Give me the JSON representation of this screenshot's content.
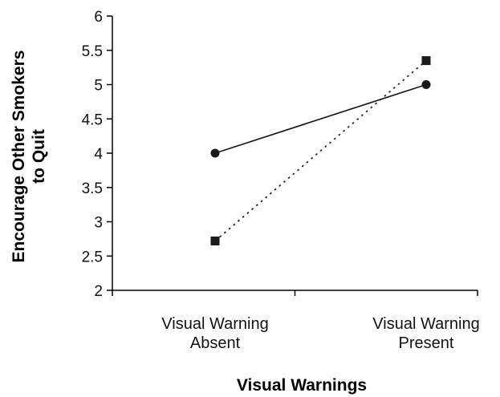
{
  "chart_data": {
    "type": "line",
    "title": "",
    "xlabel": "Visual Warnings",
    "ylabel_lines": [
      "Encourage Other Smokers",
      "to Quit"
    ],
    "categories": [
      [
        "Visual Warning",
        "Absent"
      ],
      [
        "Visual Warning",
        "Present"
      ]
    ],
    "ylim": [
      2,
      6
    ],
    "yticks": [
      "2",
      "2.5",
      "3",
      "3.5",
      "4",
      "4.5",
      "5",
      "5.5",
      "6"
    ],
    "grid": false,
    "legend": "none",
    "series": [
      {
        "values": [
          4.0,
          5.0
        ],
        "marker": "circle",
        "line_style": "solid",
        "color": "#1a1a1a"
      },
      {
        "values": [
          2.72,
          5.35
        ],
        "marker": "square",
        "line_style": "dotted",
        "color": "#1a1a1a"
      }
    ]
  }
}
